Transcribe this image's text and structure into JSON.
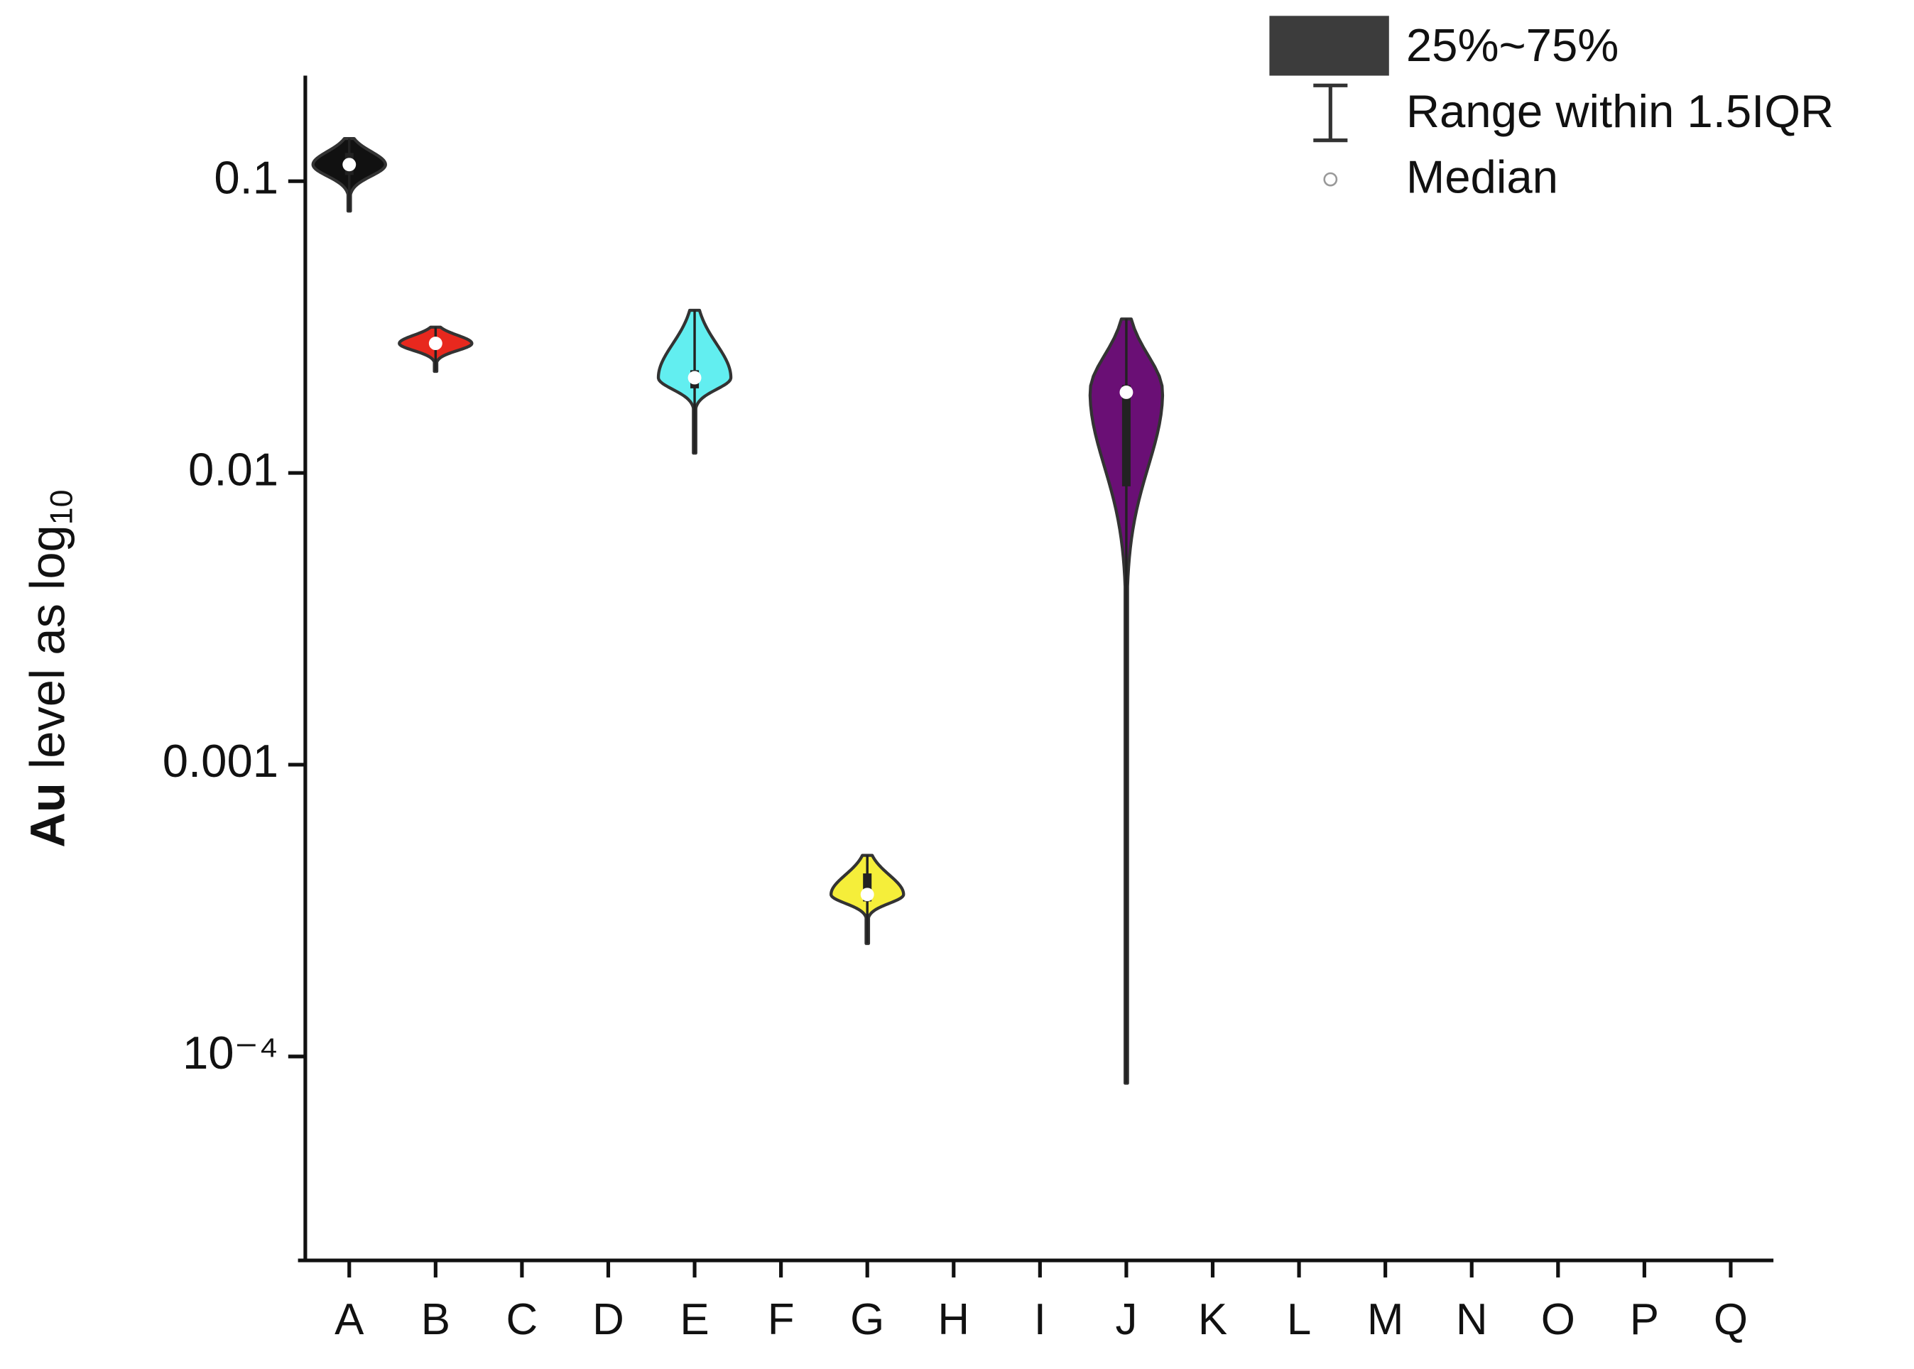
{
  "chart_data": {
    "type": "violin",
    "ylabel": [
      "Au",
      "level as log",
      "10"
    ],
    "categories": [
      "A",
      "B",
      "C",
      "D",
      "E",
      "F",
      "G",
      "H",
      "I",
      "J",
      "K",
      "L",
      "M",
      "N",
      "O",
      "P",
      "Q"
    ],
    "violins": [
      {
        "category": "A",
        "color": "#111111",
        "min": 0.079,
        "q1": 0.105,
        "median": 0.114,
        "q3": 0.125,
        "max": 0.14
      },
      {
        "category": "B",
        "color": "#e8281e",
        "min": 0.0223,
        "q1": 0.0268,
        "median": 0.0278,
        "q3": 0.0288,
        "max": 0.0316
      },
      {
        "category": "E",
        "color": "#62eef0",
        "min": 0.0117,
        "q1": 0.0195,
        "median": 0.0212,
        "q3": 0.0225,
        "max": 0.0361
      },
      {
        "category": "G",
        "color": "#f5ee3a",
        "min": 0.000244,
        "q1": 0.00034,
        "median": 0.000359,
        "q3": 0.000424,
        "max": 0.000489
      },
      {
        "category": "J",
        "color": "#6a0f75",
        "min": 8.1e-05,
        "q1": 0.009,
        "median": 0.0189,
        "q3": 0.02,
        "max": 0.0337
      }
    ],
    "ylog": true,
    "ylim": [
      2e-05,
      0.23
    ],
    "yticks": [
      0.1,
      0.01,
      0.001,
      {
        "value": 0.0001,
        "label": "10⁻⁴"
      }
    ],
    "legend": {
      "box": "25%~75%",
      "range": "Range within 1.5IQR",
      "median": "Median"
    }
  }
}
